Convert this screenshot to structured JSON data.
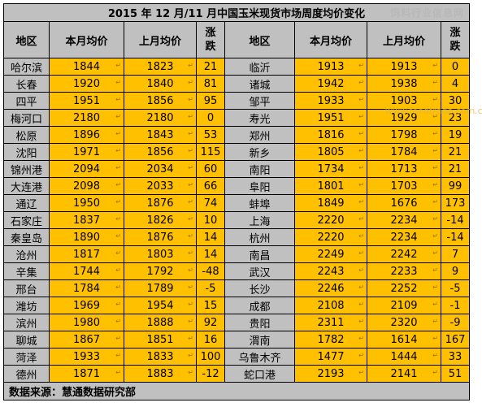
{
  "title": "2015 年 12 月/11 月中国玉米现货市场周度均价变化",
  "watermark": "饲料行业信息网",
  "watermark_url": "www.feedtrade.com.cn",
  "headers": {
    "region": "地区",
    "this_month": "本月均价",
    "last_month": "上月均价",
    "change": "涨跌"
  },
  "arrow_glyph": "↵",
  "rows": [
    {
      "left": {
        "city": "哈尔滨",
        "cur": "1844",
        "prev": "1823",
        "chg": "21"
      },
      "right": {
        "city": "临沂",
        "cur": "1913",
        "prev": "1913",
        "chg": "0"
      }
    },
    {
      "left": {
        "city": "长春",
        "cur": "1920",
        "prev": "1840",
        "chg": "81"
      },
      "right": {
        "city": "诸城",
        "cur": "1942",
        "prev": "1938",
        "chg": "4"
      }
    },
    {
      "left": {
        "city": "四平",
        "cur": "1951",
        "prev": "1856",
        "chg": "95"
      },
      "right": {
        "city": "邹平",
        "cur": "1933",
        "prev": "1903",
        "chg": "30"
      }
    },
    {
      "left": {
        "city": "梅河口",
        "cur": "2180",
        "prev": "2180",
        "chg": "0"
      },
      "right": {
        "city": "寿光",
        "cur": "1951",
        "prev": "1929",
        "chg": "23"
      }
    },
    {
      "left": {
        "city": "松原",
        "cur": "1896",
        "prev": "1843",
        "chg": "53"
      },
      "right": {
        "city": "郑州",
        "cur": "1816",
        "prev": "1798",
        "chg": "19"
      }
    },
    {
      "left": {
        "city": "沈阳",
        "cur": "1971",
        "prev": "1856",
        "chg": "115"
      },
      "right": {
        "city": "新乡",
        "cur": "1805",
        "prev": "1784",
        "chg": "21"
      }
    },
    {
      "left": {
        "city": "锦州港",
        "cur": "2094",
        "prev": "2034",
        "chg": "60"
      },
      "right": {
        "city": "南阳",
        "cur": "1734",
        "prev": "1713",
        "chg": "21"
      }
    },
    {
      "left": {
        "city": "大连港",
        "cur": "2098",
        "prev": "2033",
        "chg": "66"
      },
      "right": {
        "city": "阜阳",
        "cur": "1801",
        "prev": "1703",
        "chg": "99"
      }
    },
    {
      "left": {
        "city": "通辽",
        "cur": "1950",
        "prev": "1876",
        "chg": "74"
      },
      "right": {
        "city": "蚌埠",
        "cur": "1849",
        "prev": "1676",
        "chg": "173"
      }
    },
    {
      "left": {
        "city": "石家庄",
        "cur": "1837",
        "prev": "1826",
        "chg": "10"
      },
      "right": {
        "city": "上海",
        "cur": "2220",
        "prev": "2234",
        "chg": "-14"
      }
    },
    {
      "left": {
        "city": "秦皇岛",
        "cur": "1890",
        "prev": "1876",
        "chg": "14"
      },
      "right": {
        "city": "杭州",
        "cur": "2220",
        "prev": "2234",
        "chg": "-14"
      }
    },
    {
      "left": {
        "city": "沧州",
        "cur": "1817",
        "prev": "1803",
        "chg": "14"
      },
      "right": {
        "city": "南昌",
        "cur": "2249",
        "prev": "2242",
        "chg": "7"
      }
    },
    {
      "left": {
        "city": "辛集",
        "cur": "1744",
        "prev": "1792",
        "chg": "-48"
      },
      "right": {
        "city": "武汉",
        "cur": "2243",
        "prev": "2233",
        "chg": "9"
      }
    },
    {
      "left": {
        "city": "邢台",
        "cur": "1784",
        "prev": "1789",
        "chg": "-5"
      },
      "right": {
        "city": "长沙",
        "cur": "2246",
        "prev": "2252",
        "chg": "-5"
      }
    },
    {
      "left": {
        "city": "潍坊",
        "cur": "1969",
        "prev": "1954",
        "chg": "15"
      },
      "right": {
        "city": "成都",
        "cur": "2108",
        "prev": "2109",
        "chg": "-1"
      }
    },
    {
      "left": {
        "city": "滨州",
        "cur": "1980",
        "prev": "1888",
        "chg": "92"
      },
      "right": {
        "city": "贵阳",
        "cur": "2311",
        "prev": "2320",
        "chg": "-9"
      }
    },
    {
      "left": {
        "city": "聊城",
        "cur": "1867",
        "prev": "1851",
        "chg": "16"
      },
      "right": {
        "city": "渭南",
        "cur": "1782",
        "prev": "1614",
        "chg": "167"
      }
    },
    {
      "left": {
        "city": "菏泽",
        "cur": "1933",
        "prev": "1833",
        "chg": "100"
      },
      "right": {
        "city": "乌鲁木齐",
        "cur": "1477",
        "prev": "1444",
        "chg": "33"
      }
    },
    {
      "left": {
        "city": "德州",
        "cur": "1871",
        "prev": "1883",
        "chg": "-12"
      },
      "right": {
        "city": "蛇口港",
        "cur": "2193",
        "prev": "2141",
        "chg": "51"
      }
    }
  ],
  "footer": "数据来源：慧通数据研究部",
  "colors": {
    "header_bg": "#c0c0c0",
    "value_bg": "#ffc000",
    "border": "#000000"
  }
}
